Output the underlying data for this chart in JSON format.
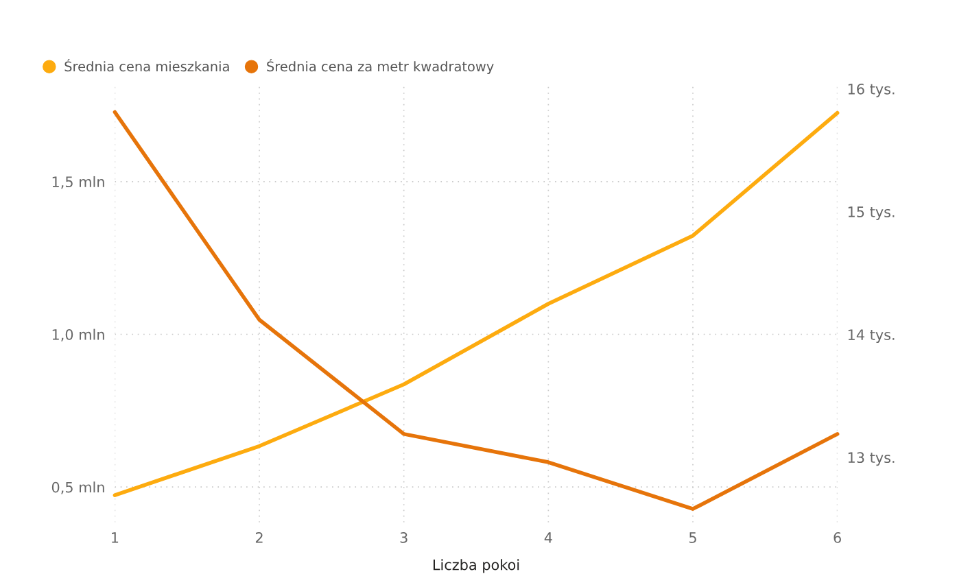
{
  "chart_data": {
    "type": "line",
    "xlabel": "Liczba pokoi",
    "x": [
      1,
      2,
      3,
      4,
      5,
      6
    ],
    "series": [
      {
        "name": "Średnia cena mieszkania",
        "color": "#fdab0f",
        "values": [
          0.473,
          0.634,
          0.836,
          1.1,
          1.323,
          1.725
        ]
      },
      {
        "name": "Średnia cena za metr kwadratowy",
        "color": "#e6740a",
        "axis": "y2",
        "values": [
          15.81,
          14.12,
          13.19,
          12.96,
          12.58,
          13.19
        ]
      }
    ],
    "xlim": [
      1,
      6
    ],
    "xticks": [
      1,
      2,
      3,
      4,
      5,
      6
    ],
    "ylim": [
      0.384,
      1.816
    ],
    "yticks": [
      {
        "value": 0.5,
        "label": "0,5 mln"
      },
      {
        "value": 1.0,
        "label": "1,0 mln"
      },
      {
        "value": 1.5,
        "label": "1,5 mln"
      }
    ],
    "y2lim": [
      12.47,
      16.03
    ],
    "y2ticks": [
      {
        "value": 13,
        "label": "13 tys."
      },
      {
        "value": 14,
        "label": "14 tys."
      },
      {
        "value": 15,
        "label": "15 tys."
      },
      {
        "value": 16,
        "label": "16 tys."
      }
    ],
    "grid": true,
    "legend": "top left",
    "marker": "none",
    "line_style": "solid"
  }
}
